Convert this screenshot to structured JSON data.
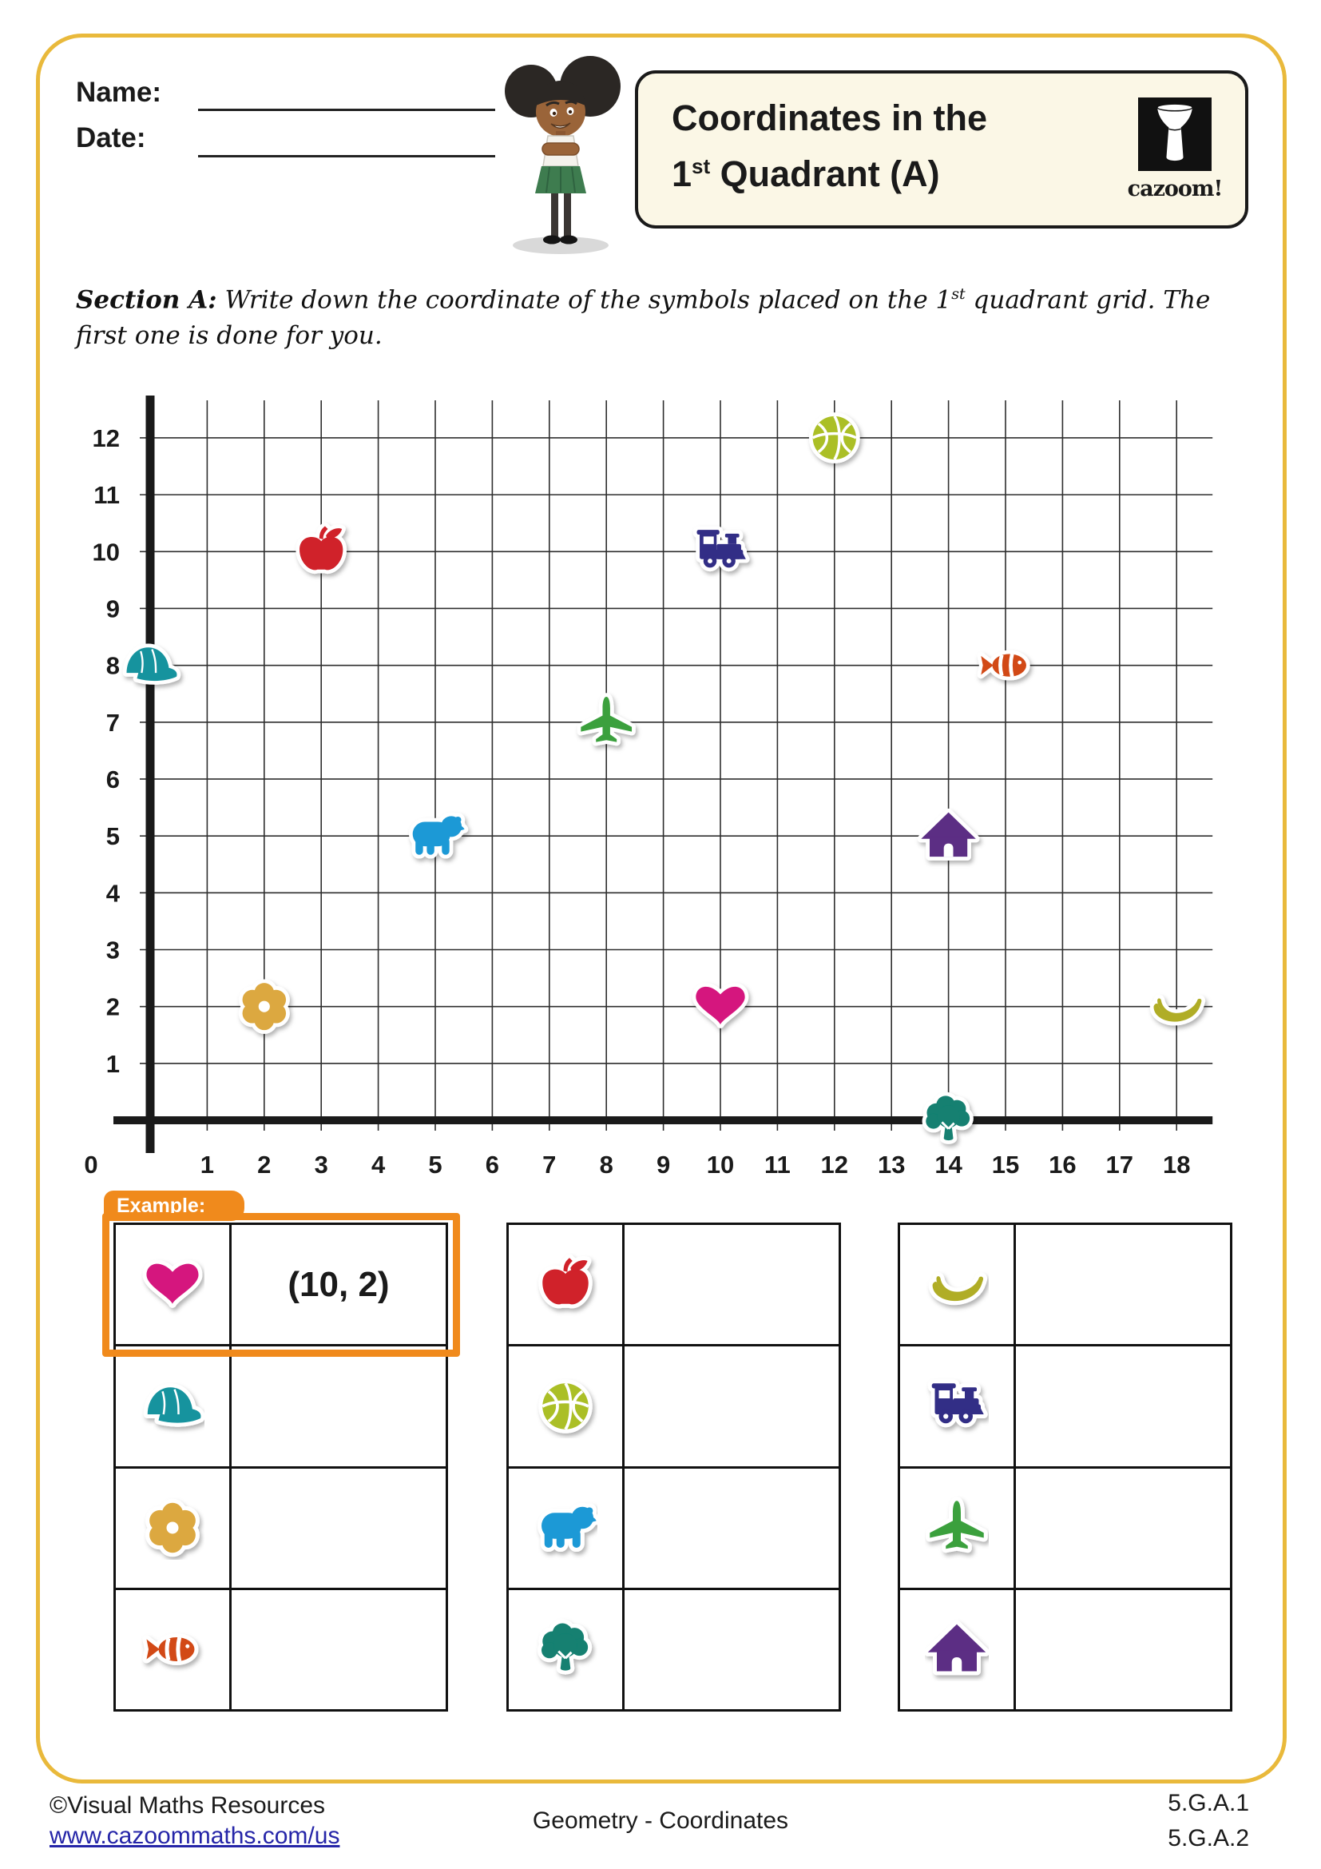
{
  "header": {
    "name_label": "Name:",
    "date_label": "Date:",
    "title_line1": "Coordinates in the",
    "title_line2": {
      "num": "1",
      "sup": "st",
      "rest": " Quadrant (A)"
    },
    "logo_text": "cazoom!"
  },
  "section_a": {
    "label": "Section A:",
    "text_before_sup": "  Write down the coordinate of the symbols placed on the 1",
    "text_sup": "st",
    "text_after_sup": " quadrant grid. The first one is done for you."
  },
  "chart_data": {
    "type": "scatter",
    "title": "",
    "xlabel": "",
    "ylabel": "",
    "x_range": [
      0,
      18
    ],
    "y_range": [
      0,
      12
    ],
    "grid": true,
    "x_ticks": [
      "0",
      "1",
      "2",
      "3",
      "4",
      "5",
      "6",
      "7",
      "8",
      "9",
      "10",
      "11",
      "12",
      "13",
      "14",
      "15",
      "16",
      "17",
      "18"
    ],
    "y_ticks": [
      "1",
      "2",
      "3",
      "4",
      "5",
      "6",
      "7",
      "8",
      "9",
      "10",
      "11",
      "12"
    ],
    "points": [
      {
        "symbol": "cap",
        "x": 0,
        "y": 8
      },
      {
        "symbol": "flower",
        "x": 2,
        "y": 2
      },
      {
        "symbol": "apple",
        "x": 3,
        "y": 10
      },
      {
        "symbol": "bear",
        "x": 5,
        "y": 5
      },
      {
        "symbol": "airplane",
        "x": 8,
        "y": 7
      },
      {
        "symbol": "train",
        "x": 10,
        "y": 10
      },
      {
        "symbol": "heart",
        "x": 10,
        "y": 2
      },
      {
        "symbol": "basketball",
        "x": 12,
        "y": 12
      },
      {
        "symbol": "house",
        "x": 14,
        "y": 5
      },
      {
        "symbol": "tree",
        "x": 14,
        "y": 0
      },
      {
        "symbol": "fish",
        "x": 15,
        "y": 8
      },
      {
        "symbol": "banana",
        "x": 18,
        "y": 2
      }
    ]
  },
  "symbol_colors": {
    "heart": "#d5187e",
    "cap": "#15939e",
    "flower": "#dca840",
    "fish": "#d24a17",
    "apple": "#d0202a",
    "basketball": "#abbf26",
    "bear": "#1f99d6",
    "tree": "#128071",
    "banana": "#b0ad25",
    "train": "#332d86",
    "airplane": "#3ba03c",
    "house": "#5c2d84"
  },
  "example": {
    "label": "Example:",
    "answer": "(10, 2)"
  },
  "answer_tables": [
    {
      "rows": [
        {
          "symbol": "heart",
          "answer": "(10, 2)"
        },
        {
          "symbol": "cap",
          "answer": ""
        },
        {
          "symbol": "flower",
          "answer": ""
        },
        {
          "symbol": "fish",
          "answer": ""
        }
      ]
    },
    {
      "rows": [
        {
          "symbol": "apple",
          "answer": ""
        },
        {
          "symbol": "basketball",
          "answer": ""
        },
        {
          "symbol": "bear",
          "answer": ""
        },
        {
          "symbol": "tree",
          "answer": ""
        }
      ]
    },
    {
      "rows": [
        {
          "symbol": "banana",
          "answer": ""
        },
        {
          "symbol": "train",
          "answer": ""
        },
        {
          "symbol": "airplane",
          "answer": ""
        },
        {
          "symbol": "house",
          "answer": ""
        }
      ]
    }
  ],
  "footer": {
    "copyright": "©Visual Maths Resources",
    "link": "www.cazoommaths.com/us",
    "center": "Geometry - Coordinates",
    "standards": [
      "5.G.A.1",
      "5.G.A.2"
    ]
  }
}
